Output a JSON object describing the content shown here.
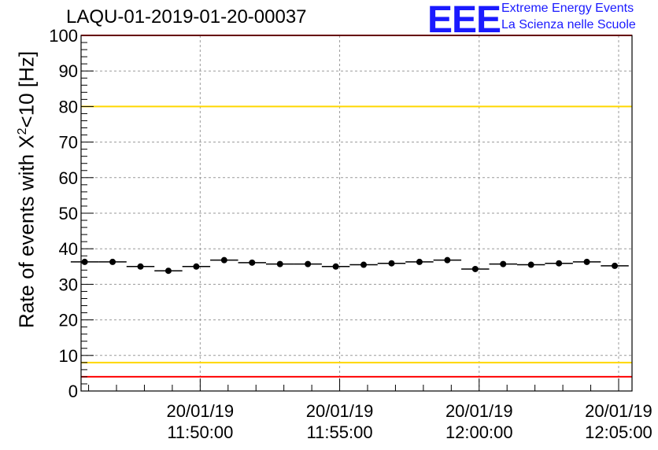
{
  "chart_data": {
    "type": "scatter",
    "title": "LAQU-01-2019-01-20-00037",
    "ylabel_prefix": "Rate of events with X",
    "ylabel_sup": "2",
    "ylabel_suffix": "<10 [Hz]",
    "ylim": [
      0,
      100
    ],
    "yticks": [
      0,
      10,
      20,
      30,
      40,
      50,
      60,
      70,
      80,
      90,
      100
    ],
    "xlim_minutes": [
      -4.27,
      15.48
    ],
    "xticks": [
      {
        "minute": 0,
        "date": "20/01/19",
        "time": "11:50:00"
      },
      {
        "minute": 5,
        "date": "20/01/19",
        "time": "11:55:00"
      },
      {
        "minute": 10,
        "date": "20/01/19",
        "time": "12:00:00"
      },
      {
        "minute": 15,
        "date": "20/01/19",
        "time": "12:05:00"
      }
    ],
    "bin_width_minutes": 1,
    "x_minutes": [
      -4.14,
      -3.14,
      -2.14,
      -1.14,
      -0.14,
      0.86,
      1.86,
      2.86,
      3.86,
      4.86,
      5.86,
      6.86,
      7.86,
      8.86,
      9.86,
      10.86,
      11.86,
      12.86,
      13.86,
      14.86
    ],
    "values": [
      36.3,
      36.3,
      35.0,
      33.8,
      35.0,
      36.8,
      36.1,
      35.7,
      35.7,
      35.0,
      35.5,
      35.9,
      36.3,
      36.8,
      34.3,
      35.7,
      35.5,
      35.9,
      36.3,
      35.2
    ],
    "reference_lines": [
      {
        "name": "upper-limit",
        "value": 100,
        "color": "#ff0000"
      },
      {
        "name": "upper-warning",
        "value": 80,
        "color": "#ffd700"
      },
      {
        "name": "lower-warning",
        "value": 8,
        "color": "#ffd700"
      },
      {
        "name": "lower-limit",
        "value": 4,
        "color": "#ff0000"
      }
    ],
    "grid": true
  },
  "logo": {
    "mark": "EEE",
    "line1": "Extreme Energy Events",
    "line2": "La Scienza nelle Scuole"
  },
  "colors": {
    "brand": "#1a1aff",
    "marker": "#000000",
    "grid": "#9a9a9a"
  }
}
